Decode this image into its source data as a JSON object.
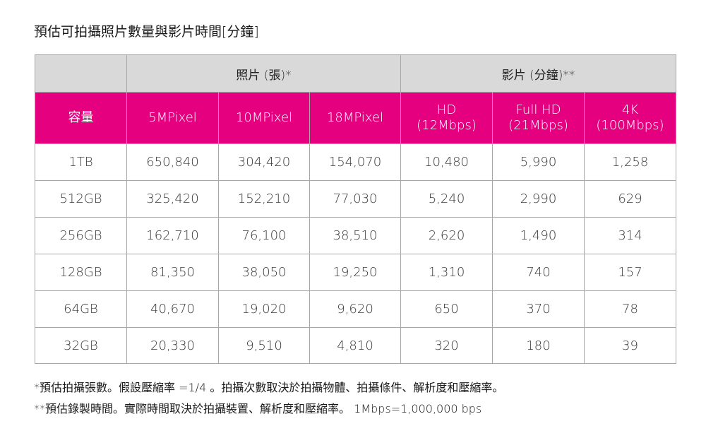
{
  "title": "預估可拍攝照片數量與影片時間[分鐘]",
  "table": {
    "group_headers": {
      "empty": "",
      "photos": "照片 (張)*",
      "video": "影片 (分鐘)**"
    },
    "columns": {
      "capacity": "容量",
      "mp5": "5MPixel",
      "mp10": "10MPixel",
      "mp18": "18MPixel",
      "hd_line1": "HD",
      "hd_line2": "(12Mbps)",
      "fhd_line1": "Full HD",
      "fhd_line2": "(21Mbps)",
      "k4_line1": "4K",
      "k4_line2": "(100Mbps)"
    },
    "rows": [
      [
        "1TB",
        "650,840",
        "304,420",
        "154,070",
        "10,480",
        "5,990",
        "1,258"
      ],
      [
        "512GB",
        "325,420",
        "152,210",
        "77,030",
        "5,240",
        "2,990",
        "629"
      ],
      [
        "256GB",
        "162,710",
        "76,100",
        "38,510",
        "2,620",
        "1,490",
        "314"
      ],
      [
        "128GB",
        "81,350",
        "38,050",
        "19,250",
        "1,310",
        "740",
        "157"
      ],
      [
        "64GB",
        "40,670",
        "19,020",
        "9,620",
        "650",
        "370",
        "78"
      ],
      [
        "32GB",
        "20,330",
        "9,510",
        "4,810",
        "320",
        "180",
        "39"
      ]
    ]
  },
  "notes": {
    "photo_note": "*預估拍攝張數。假設壓縮率 =1/4 。拍攝次數取決於拍攝物體、拍攝條件、解析度和壓縮率。",
    "video_note": "**預估錄製時間。實際時間取決於拍攝裝置、解析度和壓縮率。 1Mbps=1,000,000 bps"
  },
  "colors": {
    "header_magenta": "#e4007f",
    "group_header_gray": "#d9d9d9",
    "border_gray": "#a8a8a8"
  }
}
